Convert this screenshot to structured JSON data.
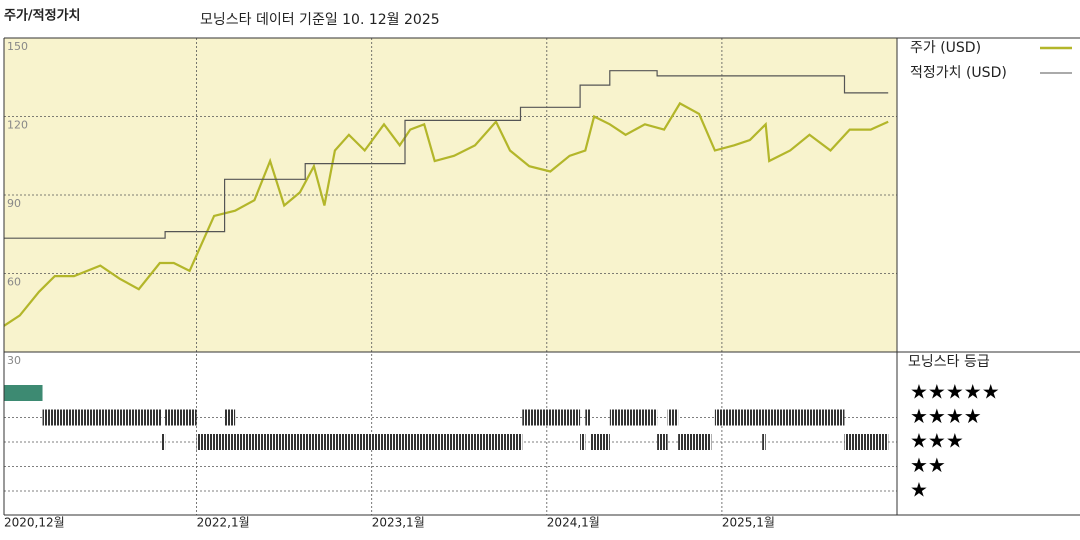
{
  "chart_data": {
    "type": "line",
    "title": "주가/적정가치",
    "subtitle": "모닝스타 데이터 기준일 10. 12월 2025",
    "xlim": [
      2020.9,
      2026.0
    ],
    "xticks": [
      {
        "value": 2020.9,
        "label": "2020,12월"
      },
      {
        "value": 2022,
        "label": "2022,1월"
      },
      {
        "value": 2023,
        "label": "2023,1월"
      },
      {
        "value": 2024,
        "label": "2024,1월"
      },
      {
        "value": 2025,
        "label": "2025,1월"
      }
    ],
    "ylim": [
      30,
      150
    ],
    "yticks": [
      30,
      60,
      90,
      120,
      150
    ],
    "grid": true,
    "series": [
      {
        "name": "주가 (USD)",
        "color": "#b3b62a",
        "x": [
          2020.9,
          2020.99,
          2021.1,
          2021.19,
          2021.3,
          2021.45,
          2021.56,
          2021.67,
          2021.79,
          2021.87,
          2021.96,
          2022.02,
          2022.1,
          2022.22,
          2022.33,
          2022.42,
          2022.5,
          2022.59,
          2022.67,
          2022.73,
          2022.79,
          2022.87,
          2022.96,
          2023.07,
          2023.16,
          2023.22,
          2023.3,
          2023.36,
          2023.47,
          2023.59,
          2023.71,
          2023.79,
          2023.9,
          2024.02,
          2024.13,
          2024.22,
          2024.27,
          2024.36,
          2024.45,
          2024.56,
          2024.67,
          2024.76,
          2024.87,
          2024.96,
          2025.07,
          2025.16,
          2025.25,
          2025.27,
          2025.39,
          2025.5,
          2025.62,
          2025.73,
          2025.85,
          2025.95
        ],
        "values": [
          40,
          44,
          53,
          59,
          59,
          63,
          58,
          54,
          64,
          64,
          61,
          70,
          82,
          84,
          88,
          103,
          86,
          91,
          101,
          86,
          107,
          113,
          107,
          117,
          109,
          115,
          117,
          103,
          105,
          109,
          118,
          107,
          101,
          99,
          105,
          107,
          120,
          117,
          113,
          117,
          115,
          125,
          121,
          107,
          109,
          111,
          117,
          103,
          107,
          113,
          107,
          115,
          115,
          118
        ]
      },
      {
        "name": "적정가치 (USD)",
        "color": "#555555",
        "x": [
          2020.9,
          2021.82,
          2021.82,
          2022.16,
          2022.16,
          2022.62,
          2022.62,
          2023.19,
          2023.19,
          2023.85,
          2023.85,
          2024.19,
          2024.19,
          2024.36,
          2024.36,
          2024.63,
          2024.63,
          2025.7,
          2025.7,
          2025.95
        ],
        "values": [
          73.5,
          73.5,
          76,
          76,
          96,
          96,
          102,
          102,
          118.5,
          118.5,
          123.5,
          123.5,
          132,
          132,
          137.5,
          137.5,
          135.5,
          135.5,
          129,
          129
        ]
      }
    ],
    "rating_title": "모닝스타 등급",
    "rating_labels": [
      "★★★★★",
      "★★★★",
      "★★★",
      "★★",
      "★"
    ],
    "ratings": [
      {
        "rating": 5,
        "start": 2020.9,
        "end": 2021.12
      },
      {
        "rating": 4,
        "start": 2021.12,
        "end": 2021.8
      },
      {
        "rating": 3,
        "start": 2021.8,
        "end": 2021.82
      },
      {
        "rating": 4,
        "start": 2021.82,
        "end": 2022.0
      },
      {
        "rating": 3,
        "start": 2022.0,
        "end": 2023.86
      },
      {
        "rating": 4,
        "start": 2022.16,
        "end": 2022.22
      },
      {
        "rating": 4,
        "start": 2023.86,
        "end": 2024.19
      },
      {
        "rating": 3,
        "start": 2024.19,
        "end": 2024.22
      },
      {
        "rating": 4,
        "start": 2024.22,
        "end": 2024.25
      },
      {
        "rating": 3,
        "start": 2024.25,
        "end": 2024.36
      },
      {
        "rating": 4,
        "start": 2024.36,
        "end": 2024.63
      },
      {
        "rating": 3,
        "start": 2024.63,
        "end": 2024.69
      },
      {
        "rating": 4,
        "start": 2024.69,
        "end": 2024.75
      },
      {
        "rating": 3,
        "start": 2024.75,
        "end": 2024.94
      },
      {
        "rating": 4,
        "start": 2024.96,
        "end": 2025.7
      },
      {
        "rating": 3,
        "start": 2025.23,
        "end": 2025.25
      },
      {
        "rating": 3,
        "start": 2025.7,
        "end": 2025.95
      }
    ]
  }
}
